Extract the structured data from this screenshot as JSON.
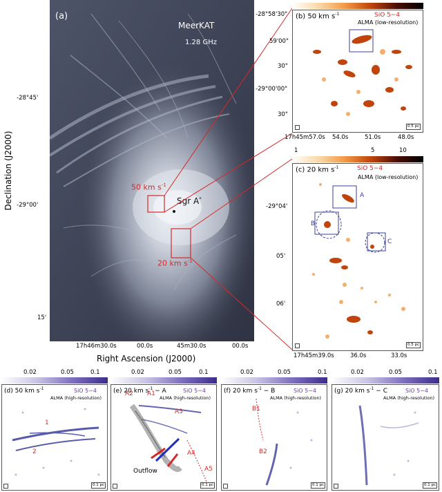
{
  "panel_a": {
    "label": "(a)",
    "telescope": "MeerKAT",
    "frequency": "1.28 GHz",
    "sgr_label": "Sgr A",
    "sgr_sup": "*",
    "box_50": "50 km s",
    "box_20": "20 km s",
    "unit_sup": "-1",
    "y_ticks": [
      "-28°45'",
      "-29°00'",
      "15'"
    ],
    "x_ticks": [
      "17h46m30.0s",
      "00.0s",
      "45m30.0s",
      "00.0s"
    ],
    "xlabel": "Right Ascension (J2000)",
    "ylabel": "Declination (J2000)"
  },
  "panel_b": {
    "label": "(b) 50 km s",
    "line": "SiO 5−4",
    "instrument": "ALMA (low-resolution)",
    "y_ticks": [
      "-28°58'30\"",
      "59'00\"",
      "30\"",
      "-29°00'00\"",
      "30\""
    ],
    "x_ticks": [
      "17h45m57.0s",
      "54.0s",
      "51.0s",
      "48.0s"
    ],
    "scale": "0.5 pc",
    "colorbar_ticks": [
      "1",
      "5",
      "10"
    ]
  },
  "panel_c": {
    "label": "(c) 20 km s",
    "line": "SiO 5−4",
    "instrument": "ALMA (low-resolution)",
    "y_ticks": [
      "-29°04'",
      "05'",
      "06'"
    ],
    "x_ticks": [
      "17h45m39.0s",
      "36.0s",
      "33.0s"
    ],
    "scale": "0.5 pc",
    "region_labels": [
      "A",
      "B",
      "C"
    ]
  },
  "colorbar_blue_ticks": [
    "0.02",
    "0.05",
    "0.1"
  ],
  "panel_d": {
    "label": "(d) 50 km s",
    "line": "SiO 5−4",
    "instrument": "ALMA (high-resolution)",
    "features": [
      "1",
      "2"
    ],
    "scale": "0.1 pc"
  },
  "panel_e": {
    "label": "(e) 20 km s",
    "suffix": " − A",
    "line": "SiO 5−4",
    "instrument": "ALMA (high-resolution)",
    "features": [
      "A2",
      "A1",
      "A3",
      "A4",
      "A5"
    ],
    "outflow": "Outflow",
    "scale": "0.1 pc"
  },
  "panel_f": {
    "label": "(f) 20 km s",
    "suffix": " − B",
    "line": "SiO 5−4",
    "instrument": "ALMA (high-resolution)",
    "features": [
      "B1",
      "B2"
    ],
    "scale": "0.1 pc"
  },
  "panel_g": {
    "label": "(g) 20 km s",
    "suffix": " − C",
    "line": "SiO 5−4",
    "instrument": "ALMA (high-resolution)",
    "scale": "0.1 pc"
  },
  "colors": {
    "red": "#d62828",
    "blue": "#3b3f9a",
    "purple": "#6a3fa0",
    "orange": "#c0440c",
    "radio_bg": "#3c4152",
    "radio_bright": "#dfe3ea"
  }
}
